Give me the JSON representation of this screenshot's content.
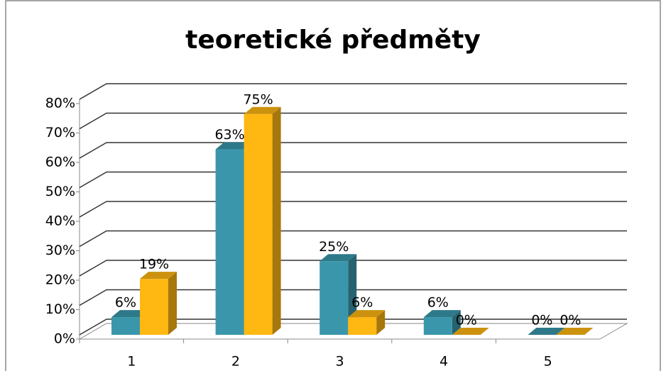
{
  "chart_data": {
    "type": "bar3d",
    "title": "teoretické předměty",
    "categories": [
      "1",
      "2",
      "3",
      "4",
      "5"
    ],
    "series": [
      {
        "color": "#3a97ab",
        "values": [
          6,
          63,
          25,
          6,
          0
        ],
        "value_labels": [
          "6%",
          "63%",
          "25%",
          "6%",
          "0%"
        ]
      },
      {
        "color": "#ffb712",
        "values": [
          19,
          75,
          6,
          0,
          0
        ],
        "value_labels": [
          "19%",
          "75%",
          "6%",
          "0%",
          "0%"
        ]
      }
    ],
    "ylim": [
      0,
      80
    ],
    "yticks": [
      {
        "value": 0,
        "label": "0%"
      },
      {
        "value": 10,
        "label": "10%"
      },
      {
        "value": 20,
        "label": "20%"
      },
      {
        "value": 30,
        "label": "30%"
      },
      {
        "value": 40,
        "label": "40%"
      },
      {
        "value": 50,
        "label": "50%"
      },
      {
        "value": 60,
        "label": "60%"
      },
      {
        "value": 70,
        "label": "70%"
      },
      {
        "value": 80,
        "label": "80%"
      }
    ],
    "grid": true
  }
}
